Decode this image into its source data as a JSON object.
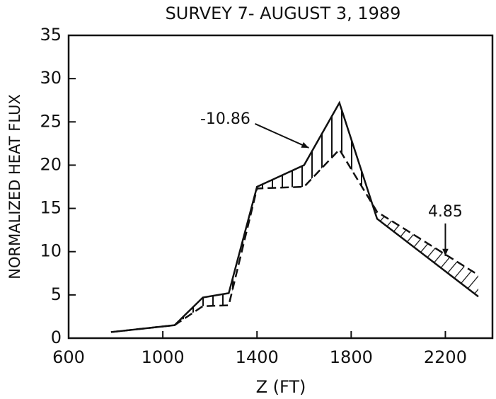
{
  "chart_data": {
    "type": "line",
    "title": "SURVEY 7- AUGUST 3, 1989",
    "xlabel": "Z (FT)",
    "ylabel": "NORMALIZED HEAT FLUX",
    "x": [
      780,
      1050,
      1170,
      1280,
      1400,
      1600,
      1750,
      1910,
      2340
    ],
    "series": [
      {
        "color": "#111111",
        "style": "solid",
        "values": [
          0.7,
          1.5,
          4.7,
          5.2,
          17.5,
          20,
          27.2,
          13.8,
          4.8
        ]
      },
      {
        "color": "#111111",
        "style": "dashed",
        "values": [
          0.7,
          1.5,
          3.7,
          3.8,
          17.3,
          17.5,
          21.8,
          14.6,
          7.3
        ]
      }
    ],
    "annotations": [
      {
        "text": "-10.86",
        "x": 1620,
        "y": 22
      },
      {
        "text": "4.85",
        "x": 2200,
        "y": 9.5
      }
    ],
    "xlim": [
      600,
      2400
    ],
    "xticks": [
      600,
      1000,
      1400,
      1800,
      2200
    ],
    "ylim": [
      0,
      35
    ],
    "yticks": [
      0,
      5,
      10,
      15,
      20,
      25,
      30,
      35
    ],
    "grid": false
  }
}
